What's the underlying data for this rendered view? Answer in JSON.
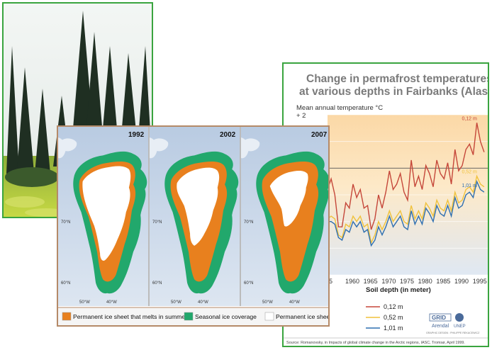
{
  "maps": {
    "years": [
      "1992",
      "2002",
      "2007"
    ],
    "lat_labels": [
      "70°N",
      "60°N"
    ],
    "lon_labels": [
      "50°W",
      "40°W"
    ],
    "legend": [
      {
        "label": "Permanent ice sheet that melts in summer",
        "color": "#e8801e"
      },
      {
        "label": "Seasonal ice coverage",
        "color": "#22a86c"
      },
      {
        "label": "Permanent ice sheet",
        "color": "#ffffff"
      }
    ]
  },
  "colors": {
    "panel_border": "#3aa43f",
    "maps_border": "#b58a68",
    "map_sea": "#c7d6e8",
    "map_land": "#e8eef5"
  },
  "chart_data": {
    "type": "line",
    "title": "Change in permafrost temperatures at various depths in Fairbanks (Alaska)",
    "ylabel": "Mean annual temperature °C",
    "y_tick_labels": [
      "+ 2"
    ],
    "x_tick_labels": [
      "5",
      "1960",
      "1965",
      "1970",
      "1975",
      "1980",
      "1985",
      "1990",
      "1995"
    ],
    "xlim": [
      1953,
      1997
    ],
    "ylim": [
      -4,
      2
    ],
    "legend_title": "Soil depth (in meter)",
    "source": "Source: Romanovsky, in Impacts of global climate change in the Arctic regions, IASC, Tromsø, April 1999.",
    "credit": "GRAPHIC DESIGN : PHILIPPE REKACEWICZ",
    "logo_text": [
      "GRID",
      "Arendal",
      "UNEP"
    ],
    "x": [
      1953,
      1954,
      1955,
      1956,
      1957,
      1958,
      1959,
      1960,
      1961,
      1962,
      1963,
      1964,
      1965,
      1966,
      1967,
      1968,
      1969,
      1970,
      1971,
      1972,
      1973,
      1974,
      1975,
      1976,
      1977,
      1978,
      1979,
      1980,
      1981,
      1982,
      1983,
      1984,
      1985,
      1986,
      1987,
      1988,
      1989,
      1990,
      1991,
      1992,
      1993,
      1994,
      1995,
      1996
    ],
    "series": [
      {
        "name": "0,12 m",
        "color": "#c5473a",
        "values": [
          -0.8,
          -0.4,
          -1.0,
          -2.2,
          -2.2,
          -1.3,
          -1.5,
          -0.6,
          -1.1,
          -0.8,
          -1.5,
          -1.4,
          -2.3,
          -1.9,
          -1.0,
          -1.5,
          -0.9,
          -0.1,
          -0.8,
          -0.6,
          -0.2,
          -0.9,
          -1.2,
          0.3,
          -0.7,
          -0.3,
          -0.8,
          0.1,
          -0.2,
          -0.7,
          0.3,
          -0.2,
          -0.4,
          0.2,
          -0.6,
          0.7,
          -0.1,
          0.1,
          0.7,
          0.9,
          0.5,
          1.7,
          1.0,
          0.6
        ]
      },
      {
        "name": "0,52 m",
        "color": "#f0c23c",
        "values": [
          -1.9,
          -1.8,
          -1.9,
          -2.5,
          -2.6,
          -2.1,
          -2.2,
          -1.8,
          -2.0,
          -1.8,
          -2.2,
          -2.1,
          -2.8,
          -2.5,
          -2.0,
          -2.3,
          -2.0,
          -1.6,
          -2.0,
          -1.8,
          -1.6,
          -2.0,
          -2.1,
          -1.4,
          -1.9,
          -1.6,
          -1.9,
          -1.3,
          -1.5,
          -1.8,
          -1.2,
          -1.5,
          -1.6,
          -1.2,
          -1.6,
          -0.9,
          -1.3,
          -1.2,
          -0.8,
          -0.7,
          -0.9,
          -0.3,
          -0.6,
          -0.7
        ]
      },
      {
        "name": "1,01 m",
        "color": "#2f6fb0",
        "values": [
          -2.0,
          -2.0,
          -2.1,
          -2.6,
          -2.7,
          -2.3,
          -2.4,
          -2.0,
          -2.2,
          -2.0,
          -2.4,
          -2.3,
          -2.9,
          -2.7,
          -2.2,
          -2.5,
          -2.2,
          -1.8,
          -2.2,
          -2.0,
          -1.8,
          -2.2,
          -2.3,
          -1.6,
          -2.1,
          -1.8,
          -2.1,
          -1.5,
          -1.7,
          -2.0,
          -1.4,
          -1.7,
          -1.8,
          -1.4,
          -1.8,
          -1.1,
          -1.5,
          -1.4,
          -1.0,
          -0.9,
          -1.1,
          -0.5,
          -0.8,
          -0.9
        ]
      }
    ]
  }
}
